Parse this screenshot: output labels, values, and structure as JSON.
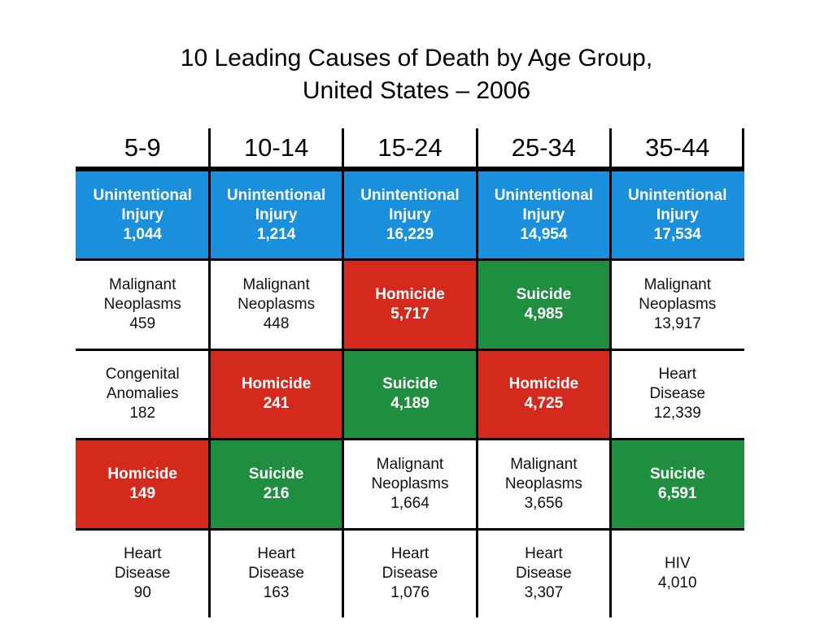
{
  "title": {
    "line1": "10 Leading Causes of Death by Age Group,",
    "line2": "United States – 2006"
  },
  "colors": {
    "unintentional_injury": "#1a8fdc",
    "homicide": "#d42a1e",
    "suicide": "#1f8f3f",
    "other": "#ffffff"
  },
  "chart_data": {
    "type": "table",
    "columns": [
      "5-9",
      "10-14",
      "15-24",
      "25-34",
      "35-44"
    ],
    "rows": [
      [
        {
          "cause": [
            "Unintentional",
            "Injury"
          ],
          "count": "1,044",
          "category": "unintentional_injury"
        },
        {
          "cause": [
            "Unintentional",
            "Injury"
          ],
          "count": "1,214",
          "category": "unintentional_injury"
        },
        {
          "cause": [
            "Unintentional",
            "Injury"
          ],
          "count": "16,229",
          "category": "unintentional_injury"
        },
        {
          "cause": [
            "Unintentional",
            "Injury"
          ],
          "count": "14,954",
          "category": "unintentional_injury"
        },
        {
          "cause": [
            "Unintentional",
            "Injury"
          ],
          "count": "17,534",
          "category": "unintentional_injury"
        }
      ],
      [
        {
          "cause": [
            "Malignant",
            "Neoplasms"
          ],
          "count": "459",
          "category": "other"
        },
        {
          "cause": [
            "Malignant",
            "Neoplasms"
          ],
          "count": "448",
          "category": "other"
        },
        {
          "cause": [
            "Homicide"
          ],
          "count": "5,717",
          "category": "homicide"
        },
        {
          "cause": [
            "Suicide"
          ],
          "count": "4,985",
          "category": "suicide"
        },
        {
          "cause": [
            "Malignant",
            "Neoplasms"
          ],
          "count": "13,917",
          "category": "other"
        }
      ],
      [
        {
          "cause": [
            "Congenital",
            "Anomalies"
          ],
          "count": "182",
          "category": "other"
        },
        {
          "cause": [
            "Homicide"
          ],
          "count": "241",
          "category": "homicide"
        },
        {
          "cause": [
            "Suicide"
          ],
          "count": "4,189",
          "category": "suicide"
        },
        {
          "cause": [
            "Homicide"
          ],
          "count": "4,725",
          "category": "homicide"
        },
        {
          "cause": [
            "Heart",
            "Disease"
          ],
          "count": "12,339",
          "category": "other"
        }
      ],
      [
        {
          "cause": [
            "Homicide"
          ],
          "count": "149",
          "category": "homicide"
        },
        {
          "cause": [
            "Suicide"
          ],
          "count": "216",
          "category": "suicide"
        },
        {
          "cause": [
            "Malignant",
            "Neoplasms"
          ],
          "count": "1,664",
          "category": "other"
        },
        {
          "cause": [
            "Malignant",
            "Neoplasms"
          ],
          "count": "3,656",
          "category": "other"
        },
        {
          "cause": [
            "Suicide"
          ],
          "count": "6,591",
          "category": "suicide"
        }
      ],
      [
        {
          "cause": [
            "Heart",
            "Disease"
          ],
          "count": "90",
          "category": "other"
        },
        {
          "cause": [
            "Heart",
            "Disease"
          ],
          "count": "163",
          "category": "other"
        },
        {
          "cause": [
            "Heart",
            "Disease"
          ],
          "count": "1,076",
          "category": "other"
        },
        {
          "cause": [
            "Heart",
            "Disease"
          ],
          "count": "3,307",
          "category": "other"
        },
        {
          "cause": [
            "HIV"
          ],
          "count": "4,010",
          "category": "other"
        }
      ]
    ]
  }
}
